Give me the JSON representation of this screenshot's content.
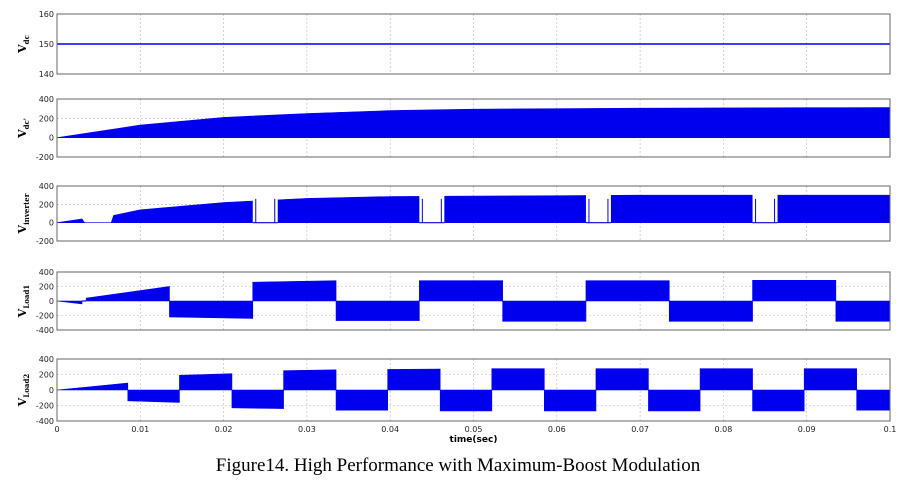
{
  "caption": "Figure14. High Performance with Maximum-Boost Modulation",
  "colors": {
    "trace": "#0000ee",
    "frame": "#666666",
    "grid": "#b8b8b8"
  },
  "chart_data": [
    {
      "type": "line",
      "ylabel": "V_dc",
      "ylabel_main": "V",
      "ylabel_sub": "dc",
      "ylim": [
        140,
        160
      ],
      "yticks": [
        "160",
        "150",
        "140"
      ],
      "series": [
        {
          "name": "",
          "x": [
            0,
            0.1
          ],
          "y": [
            150,
            150
          ]
        }
      ]
    },
    {
      "type": "area",
      "ylabel": "V_dc'",
      "ylabel_main": "V",
      "ylabel_sub": "dc'",
      "ylim": [
        -200,
        400
      ],
      "yticks": [
        "400",
        "200",
        "0",
        "-200"
      ],
      "envelope": {
        "x": [
          0,
          0.01,
          0.02,
          0.03,
          0.04,
          0.05,
          0.06,
          0.07,
          0.08,
          0.09,
          0.1
        ],
        "upper": [
          0,
          130,
          210,
          250,
          280,
          295,
          300,
          305,
          308,
          310,
          312
        ]
      },
      "lower": 0
    },
    {
      "type": "area",
      "ylabel": "V_inverter",
      "ylabel_main": "V",
      "ylabel_sub": "inverter",
      "ylim": [
        -200,
        400
      ],
      "yticks": [
        "400",
        "200",
        "0",
        "-200"
      ],
      "envelope": {
        "x": [
          0,
          0.003,
          0.0033,
          0.0065,
          0.0068,
          0.01,
          0.02,
          0.03,
          0.04,
          0.05,
          0.06,
          0.07,
          0.08,
          0.09,
          0.1
        ],
        "upper": [
          0,
          40,
          0,
          0,
          80,
          140,
          220,
          265,
          285,
          290,
          295,
          300,
          300,
          300,
          300
        ]
      },
      "gaps": [
        [
          0.0235,
          0.0265
        ],
        [
          0.0435,
          0.0465
        ],
        [
          0.0635,
          0.0665
        ],
        [
          0.0835,
          0.0865
        ]
      ],
      "lower": 0
    },
    {
      "type": "area",
      "ylabel": "V_Load_1",
      "ylabel_main": "V",
      "ylabel_sub": "Load1",
      "ylim": [
        -400,
        400
      ],
      "yticks": [
        "400",
        "200",
        "0",
        "-200",
        "-400"
      ],
      "blocks": [
        {
          "x0": 0,
          "x1": 0.003,
          "v0": 0,
          "v1": -40
        },
        {
          "x0": 0.003,
          "x1": 0.0035,
          "v0": 0,
          "v1": 0
        },
        {
          "x0": 0.0035,
          "x1": 0.0135,
          "v0": 40,
          "v1": 200
        },
        {
          "x0": 0.0135,
          "x1": 0.0235,
          "v0": -220,
          "v1": -240
        },
        {
          "x0": 0.0235,
          "x1": 0.0335,
          "v0": 260,
          "v1": 280
        },
        {
          "x0": 0.0335,
          "x1": 0.0435,
          "v0": -270,
          "v1": -270
        },
        {
          "x0": 0.0435,
          "x1": 0.0535,
          "v0": 280,
          "v1": 280
        },
        {
          "x0": 0.0535,
          "x1": 0.0635,
          "v0": -280,
          "v1": -280
        },
        {
          "x0": 0.0635,
          "x1": 0.0735,
          "v0": 280,
          "v1": 280
        },
        {
          "x0": 0.0735,
          "x1": 0.0835,
          "v0": -280,
          "v1": -280
        },
        {
          "x0": 0.0835,
          "x1": 0.0935,
          "v0": 285,
          "v1": 285
        },
        {
          "x0": 0.0935,
          "x1": 0.1,
          "v0": -280,
          "v1": -280
        }
      ]
    },
    {
      "type": "area",
      "ylabel": "V_Load_2",
      "ylabel_main": "V",
      "ylabel_sub": "Load2",
      "ylim": [
        -400,
        400
      ],
      "yticks": [
        "400",
        "200",
        "0",
        "-200",
        "-400"
      ],
      "blocks": [
        {
          "x0": 0,
          "x1": 0.0085,
          "v0": 0,
          "v1": 90
        },
        {
          "x0": 0.0085,
          "x1": 0.0147,
          "v0": -140,
          "v1": -160
        },
        {
          "x0": 0.0147,
          "x1": 0.021,
          "v0": 190,
          "v1": 210
        },
        {
          "x0": 0.021,
          "x1": 0.0272,
          "v0": -230,
          "v1": -240
        },
        {
          "x0": 0.0272,
          "x1": 0.0335,
          "v0": 250,
          "v1": 260
        },
        {
          "x0": 0.0335,
          "x1": 0.0397,
          "v0": -260,
          "v1": -260
        },
        {
          "x0": 0.0397,
          "x1": 0.046,
          "v0": 265,
          "v1": 270
        },
        {
          "x0": 0.046,
          "x1": 0.0522,
          "v0": -270,
          "v1": -270
        },
        {
          "x0": 0.0522,
          "x1": 0.0585,
          "v0": 275,
          "v1": 275
        },
        {
          "x0": 0.0585,
          "x1": 0.0647,
          "v0": -270,
          "v1": -270
        },
        {
          "x0": 0.0647,
          "x1": 0.071,
          "v0": 275,
          "v1": 275
        },
        {
          "x0": 0.071,
          "x1": 0.0772,
          "v0": -270,
          "v1": -270
        },
        {
          "x0": 0.0772,
          "x1": 0.0835,
          "v0": 275,
          "v1": 275
        },
        {
          "x0": 0.0835,
          "x1": 0.0897,
          "v0": -270,
          "v1": -270
        },
        {
          "x0": 0.0897,
          "x1": 0.096,
          "v0": 275,
          "v1": 275
        },
        {
          "x0": 0.096,
          "x1": 0.1,
          "v0": -260,
          "v1": -260
        }
      ],
      "xlabel": "time(sec)",
      "xlim": [
        0,
        0.1
      ],
      "xticks": [
        "0",
        "0.01",
        "0.02",
        "0.03",
        "0.04",
        "0.05",
        "0.06",
        "0.07",
        "0.08",
        "0.09",
        "0.1"
      ]
    }
  ]
}
